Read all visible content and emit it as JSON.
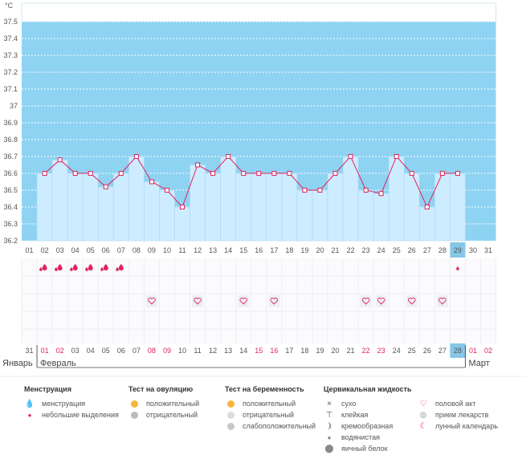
{
  "chart_data": {
    "type": "line",
    "unit_label": "°C",
    "ylim": [
      36.2,
      37.6
    ],
    "y_ticks": [
      "37.5",
      "37.4",
      "37.3",
      "37.2",
      "37.1",
      "37",
      "36.9",
      "36.8",
      "36.7",
      "36.6",
      "36.5",
      "36.4",
      "36.3",
      "36.2"
    ],
    "x_top": [
      "01",
      "02",
      "03",
      "04",
      "05",
      "06",
      "07",
      "08",
      "09",
      "10",
      "11",
      "12",
      "13",
      "14",
      "15",
      "16",
      "17",
      "18",
      "19",
      "20",
      "21",
      "22",
      "23",
      "24",
      "25",
      "26",
      "27",
      "28",
      "29",
      "30",
      "31"
    ],
    "x_bottom": [
      "31",
      "01",
      "02",
      "03",
      "04",
      "05",
      "06",
      "07",
      "08",
      "09",
      "10",
      "11",
      "12",
      "13",
      "14",
      "15",
      "16",
      "17",
      "18",
      "19",
      "20",
      "21",
      "22",
      "23",
      "24",
      "25",
      "26",
      "27",
      "28",
      "01",
      "02"
    ],
    "x_bottom_red": [
      1,
      2,
      8,
      9,
      15,
      16,
      22,
      23,
      29,
      30
    ],
    "highlight_index": 28,
    "months": [
      "Январь",
      "Февраль",
      "Март"
    ],
    "temps": [
      null,
      36.6,
      36.68,
      36.6,
      36.6,
      36.52,
      36.6,
      36.7,
      36.55,
      36.5,
      36.4,
      36.65,
      36.6,
      36.7,
      36.6,
      36.6,
      36.6,
      36.6,
      36.5,
      36.5,
      36.6,
      36.7,
      36.5,
      36.48,
      36.7,
      36.6,
      36.4,
      36.6,
      36.6,
      null,
      null
    ],
    "menstruation_days": [
      1,
      2,
      3,
      4,
      5,
      6
    ],
    "spotting_days": [
      28
    ],
    "intercourse_days": [
      8,
      11,
      14,
      16,
      22,
      23,
      25,
      27
    ]
  },
  "legend": {
    "menstruation": {
      "title": "Менструация",
      "items": [
        "менструация",
        "небольшие выделения"
      ]
    },
    "ovulation": {
      "title": "Тест на овуляцию",
      "items": [
        "положительный",
        "отрицательный"
      ]
    },
    "pregnancy": {
      "title": "Тест на беременность",
      "items": [
        "положительный",
        "отрицательный",
        "слабоположительный"
      ]
    },
    "cervical": {
      "title": "Цервикальная жидкость",
      "items": [
        "сухо",
        "клейкая",
        "кремообразная",
        "водянистая",
        "яичный белок"
      ]
    },
    "other": {
      "items": [
        "половой акт",
        "прием лекарств",
        "лунный календарь"
      ]
    }
  },
  "colors": {
    "sky": "#8fd3f2",
    "bar": "#cdecff",
    "line": "#e0245e",
    "highlight": "#86c6e6"
  }
}
